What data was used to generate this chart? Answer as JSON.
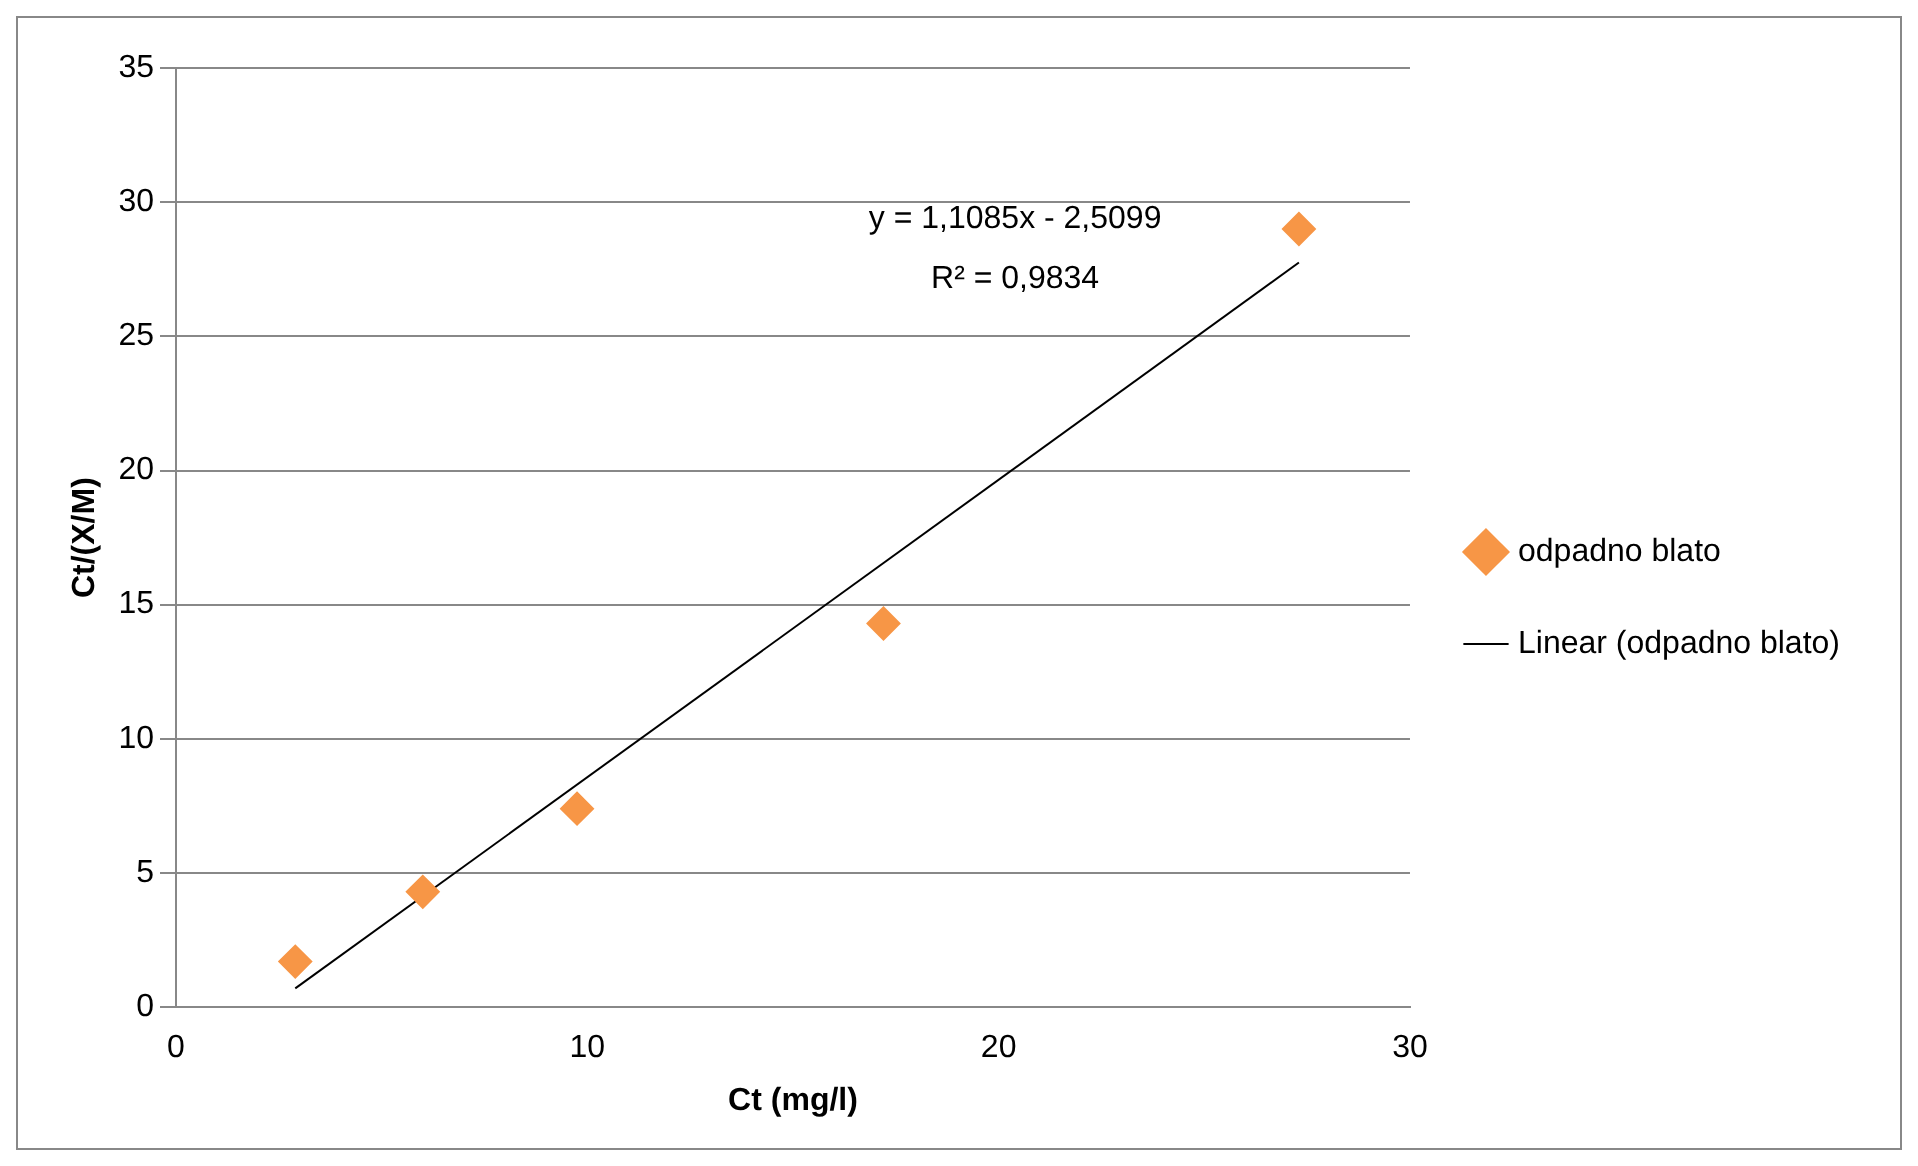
{
  "chart_data": {
    "type": "scatter",
    "xlabel": "Ct (mg/l)",
    "ylabel": "Ct/(X/M)",
    "annotations": [
      "y = 1,1085x - 2,5099",
      "R² = 0,9834"
    ],
    "series": [
      {
        "name": "odpadno blato",
        "color": "#f79646",
        "marker": "diamond",
        "x": [
          2.9,
          6.0,
          9.75,
          17.2,
          27.3
        ],
        "values": [
          1.7,
          4.3,
          7.4,
          14.3,
          29.0
        ]
      },
      {
        "name": "Linear (odpadno blato)",
        "type": "line",
        "color": "#000000",
        "marker": "none",
        "line_style": "solid",
        "x": [
          2.9,
          27.3
        ],
        "values": [
          0.7,
          27.75
        ]
      }
    ],
    "xlim": [
      0,
      30
    ],
    "xticks": [
      0,
      10,
      20,
      30
    ],
    "ylim": [
      0,
      35
    ],
    "yticks": [
      0,
      5,
      10,
      15,
      20,
      25,
      30,
      35
    ],
    "grid": "y",
    "legend": "right"
  }
}
